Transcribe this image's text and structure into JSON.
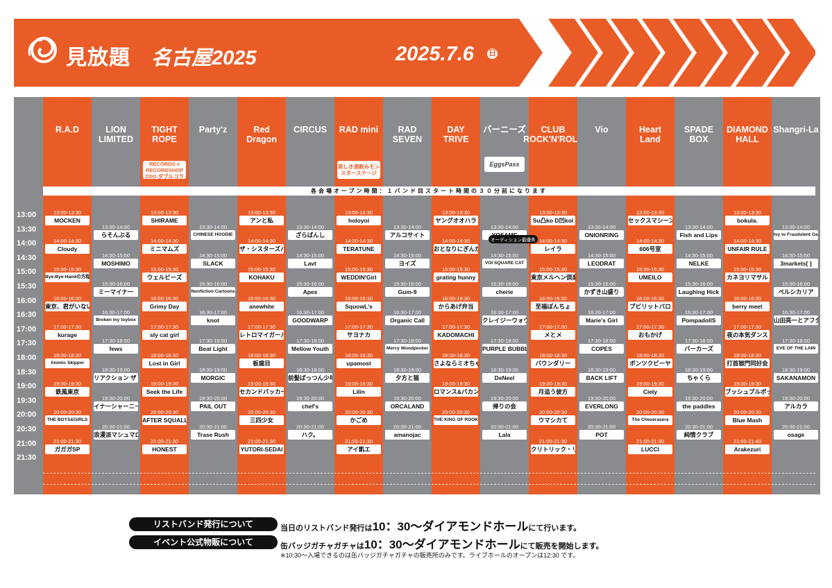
{
  "header": {
    "title": "見放題",
    "subtitle": "名古屋2025",
    "date": "2025.7.6",
    "day_of_week": "日",
    "brand_color": "#ea5c27",
    "logo_icon": "swirl-logo-icon"
  },
  "notice": "各会場オープン時間：１バンド目スタート時間の３０分前になります",
  "time_labels": [
    "13:00",
    "13:30",
    "14:00",
    "14:30",
    "15:00",
    "15:30",
    "16:00",
    "16:30",
    "17:00",
    "17:30",
    "18:00",
    "18:30",
    "19:00",
    "19:30",
    "20:00",
    "20:30",
    "21:00",
    "21:30"
  ],
  "venues": [
    {
      "name": [
        "R.A.D"
      ],
      "color": "orange",
      "slots": [
        {
          "time": "13:00-13:30",
          "name": "MOCKEN"
        },
        {
          "time": "14:00-14:30",
          "name": "Cloudy"
        },
        {
          "time": "15:00-15:30",
          "name": "Bye-Bye-Handの方程式"
        },
        {
          "time": "16:00-16:30",
          "name": "東京、君がいない街"
        },
        {
          "time": "17:00-17:30",
          "name": "kurage"
        },
        {
          "time": "18:00-18:30",
          "name": "Atomic Skipper"
        },
        {
          "time": "19:00-19:30",
          "name": "鉄風東京"
        },
        {
          "time": "20:00-20:30",
          "name": "THE BOYS&GIRLS"
        },
        {
          "time": "21:00-21:30",
          "name": "ガガガSP"
        }
      ]
    },
    {
      "name": [
        "LION",
        "LIMITED"
      ],
      "color": "gray",
      "slots": [
        {
          "time": "13:30-14:00",
          "name": "らそんぶる"
        },
        {
          "time": "14:30-15:00",
          "name": "MOSHIMO"
        },
        {
          "time": "15:30-16:00",
          "name": "ミーマイナー"
        },
        {
          "time": "16:30-17:00",
          "name": "Broken my toybox"
        },
        {
          "time": "17:30-18:00",
          "name": "fews"
        },
        {
          "time": "18:30-19:00",
          "name": "リアクション ザ ブッタ"
        },
        {
          "time": "19:30-20:00",
          "name": "イナーシャーニー"
        },
        {
          "time": "20:30-21:00",
          "name": "浪漫派マシュマロ"
        }
      ]
    },
    {
      "name": [
        "TIGHT",
        "ROPE"
      ],
      "color": "orange",
      "badge": "LONG PARTY RECORDS x RECORDSHOP ZOO ダブルコラボステージ",
      "slots": [
        {
          "time": "13:00-13:30",
          "name": "SHIRAME"
        },
        {
          "time": "14:00-14:30",
          "name": "ミニマムズ"
        },
        {
          "time": "15:00-15:30",
          "name": "ウェルビーズ"
        },
        {
          "time": "16:00-16:30",
          "name": "Grimy Day"
        },
        {
          "time": "17:00-17:30",
          "name": "sly cat girl"
        },
        {
          "time": "18:00-18:30",
          "name": "Lost in Girl"
        },
        {
          "time": "19:00-19:30",
          "name": "Seek the Life"
        },
        {
          "time": "20:00-20:30",
          "name": "AFTER SQUALL"
        },
        {
          "time": "21:00-21:30",
          "name": "HONEST"
        }
      ]
    },
    {
      "name": [
        "Party'z"
      ],
      "color": "gray",
      "slots": [
        {
          "time": "13:30-14:00",
          "name": "CHINESE HOODIE"
        },
        {
          "time": "14:30-15:00",
          "name": "SLACK"
        },
        {
          "time": "15:30-16:00",
          "name": "Nonfiction Cartoons"
        },
        {
          "time": "16:30-17:00",
          "name": "knot"
        },
        {
          "time": "17:30-18:00",
          "name": "Beat Light"
        },
        {
          "time": "18:30-19:00",
          "name": "MORGIC"
        },
        {
          "time": "19:30-20:00",
          "name": "PAIL OUT"
        },
        {
          "time": "20:30-21:00",
          "name": "Trase Rush"
        }
      ]
    },
    {
      "name": [
        "Red",
        "Dragon"
      ],
      "color": "orange",
      "slots": [
        {
          "time": "13:00-13:30",
          "name": "アンと私"
        },
        {
          "time": "14:00-14:30",
          "name": "ザ・シスターズハイ"
        },
        {
          "time": "15:00-15:30",
          "name": "KOHAKU"
        },
        {
          "time": "16:00-16:30",
          "name": "anewhite"
        },
        {
          "time": "17:00-17:30",
          "name": "レトロマイガール!!"
        },
        {
          "time": "18:00-18:30",
          "name": "板歯目"
        },
        {
          "time": "19:00-19:30",
          "name": "セカンドバッカー"
        },
        {
          "time": "20:00-20:30",
          "name": "三四少女"
        },
        {
          "time": "21:00-21:30",
          "name": "YUTORI-SEDAI"
        }
      ]
    },
    {
      "name": [
        "CIRCUS"
      ],
      "color": "gray",
      "slots": [
        {
          "time": "13:30-14:00",
          "name": "ざらばんし"
        },
        {
          "time": "14:30-15:00",
          "name": "Lavt"
        },
        {
          "time": "15:30-16:00",
          "name": "Apes"
        },
        {
          "time": "16:30-17:00",
          "name": "GOODWARP"
        },
        {
          "time": "17:30-18:00",
          "name": "Mellow Youth"
        },
        {
          "time": "18:30-19:00",
          "name": "前髪ぱっつん少年"
        },
        {
          "time": "19:30-20:00",
          "name": "chef's"
        },
        {
          "time": "20:30-21:00",
          "name": "ハク。"
        }
      ]
    },
    {
      "name": [
        "RAD mini"
      ],
      "color": "orange",
      "badge": "悲しき酒飲みモンスターステージ",
      "slots": [
        {
          "time": "13:00-13:30",
          "name": "holoyoi"
        },
        {
          "time": "14:00-14:30",
          "name": "TERATUNE"
        },
        {
          "time": "15:00-15:30",
          "name": "WEDDIN'Girl"
        },
        {
          "time": "16:00-16:30",
          "name": "SquowL's"
        },
        {
          "time": "17:00-17:30",
          "name": "サヨナカ"
        },
        {
          "time": "18:00-18:30",
          "name": "upamost"
        },
        {
          "time": "19:00-19:30",
          "name": "Lilin"
        },
        {
          "time": "20:00-20:30",
          "name": "かごめ"
        },
        {
          "time": "21:00-21:30",
          "name": "アイ凱エ"
        }
      ]
    },
    {
      "name": [
        "RAD SEVEN"
      ],
      "color": "gray",
      "slots": [
        {
          "time": "13:30-14:00",
          "name": "アルコサイト"
        },
        {
          "time": "14:30-15:00",
          "name": "ヨイズ"
        },
        {
          "time": "15:30-16:00",
          "name": "Gum-9"
        },
        {
          "time": "16:30-17:00",
          "name": "Organic Call"
        },
        {
          "time": "17:30-18:00",
          "name": "Mercy Woodpecker"
        },
        {
          "time": "18:30-19:00",
          "name": "夕方と猫"
        },
        {
          "time": "19:30-20:00",
          "name": "ORCALAND"
        },
        {
          "time": "20:30-21:00",
          "name": "amanojac"
        }
      ]
    },
    {
      "name": [
        "DAY",
        "TRIVE"
      ],
      "color": "orange",
      "slots": [
        {
          "time": "13:00-13:30",
          "name": "ヤングオオハラ"
        },
        {
          "time": "14:00-14:30",
          "name": "おとなりにぎんが計画"
        },
        {
          "time": "15:00-15:30",
          "name": "grating hunny"
        },
        {
          "time": "16:00-16:30",
          "name": "からあげ弁当"
        },
        {
          "time": "17:00-17:30",
          "name": "KADOMACHI"
        },
        {
          "time": "18:00-18:30",
          "name": "さよならミオちゃん"
        },
        {
          "time": "19:00-19:30",
          "name": "ロマンス&バカンス"
        },
        {
          "time": "20:00-20:30",
          "name": "THE KING OF ROOKIE"
        }
      ]
    },
    {
      "name": [
        "バーニーズ"
      ],
      "color": "gray",
      "badge": "EggsPass",
      "slots": [
        {
          "time": "13:30-14:00",
          "name": "YOSAME"
        },
        {
          "time": "14:30-15:00",
          "name": "VOI SQUARE CAT"
        },
        {
          "time": "15:30-16:00",
          "name": "cherie"
        },
        {
          "time": "16:30-17:00",
          "name": "クレイジーウォウウォ!!"
        },
        {
          "time": "17:30-18:00",
          "name": "PURPLE BUBBLE"
        },
        {
          "time": "18:30-19:00",
          "name": "DeNeel"
        },
        {
          "time": "19:30-20:00",
          "name": "帰りの会"
        },
        {
          "time": "20:30-21:00",
          "name": "Lala"
        }
      ]
    },
    {
      "name": [
        "CLUB",
        "ROCK'N'ROLL"
      ],
      "color": "orange",
      "slots": [
        {
          "time": "13:00-13:30",
          "name": "Su凸ko D凹koi"
        },
        {
          "time": "14:00-14:30",
          "name": "レイラ"
        },
        {
          "time": "15:00-15:30",
          "name": "東京メルヘン倶楽部"
        },
        {
          "time": "16:00-16:30",
          "name": "至福ぽんちょ"
        },
        {
          "time": "17:00-17:30",
          "name": "メとメ"
        },
        {
          "time": "18:00-18:30",
          "name": "バウンダリー"
        },
        {
          "time": "19:00-19:30",
          "name": "月追う彼方"
        },
        {
          "time": "20:00-20:30",
          "name": "ウマシカて"
        },
        {
          "time": "21:00-21:30",
          "name": "クリトリック・リス"
        }
      ]
    },
    {
      "name": [
        "Vio"
      ],
      "color": "gray",
      "slots": [
        {
          "time": "13:30-14:00",
          "name": "ONIONRING"
        },
        {
          "time": "14:30-15:00",
          "name": "LEODRAT"
        },
        {
          "time": "15:30-16:00",
          "name": "かずき山盛り"
        },
        {
          "time": "16:30-17:00",
          "name": "Marie's Girl"
        },
        {
          "time": "17:30-18:00",
          "name": "COPES"
        },
        {
          "time": "18:30-19:00",
          "name": "BACK LIFT"
        },
        {
          "time": "19:30-20:00",
          "name": "EVERLONG"
        },
        {
          "time": "20:30-21:00",
          "name": "POT"
        }
      ]
    },
    {
      "name": [
        "Heart",
        "Land"
      ],
      "color": "orange",
      "slots": [
        {
          "time": "13:00-13:30",
          "name": "セックスマシーン!!"
        },
        {
          "time": "14:00-14:30",
          "name": "606号室"
        },
        {
          "time": "15:00-15:30",
          "name": "UMEILO"
        },
        {
          "time": "16:00-16:30",
          "name": "ブビリットバロ"
        },
        {
          "time": "17:00-17:30",
          "name": "おもかげ"
        },
        {
          "time": "18:00-18:30",
          "name": "ボンツクビーヤ"
        },
        {
          "time": "19:00-19:30",
          "name": "Ciely"
        },
        {
          "time": "20:00-20:30",
          "name": "The Cheserasera"
        },
        {
          "time": "21:00-21:30",
          "name": "LUCCI"
        }
      ]
    },
    {
      "name": [
        "SPADE BOX"
      ],
      "color": "gray",
      "slots": [
        {
          "time": "13:30-14:00",
          "name": "Fish and Lips"
        },
        {
          "time": "14:30-15:00",
          "name": "NELKE"
        },
        {
          "time": "15:30-16:00",
          "name": "Laughing Hick"
        },
        {
          "time": "16:30-17:00",
          "name": "PompadollS"
        },
        {
          "time": "17:30-18:00",
          "name": "バーカーズ"
        },
        {
          "time": "18:30-19:00",
          "name": "ちゃくら"
        },
        {
          "time": "19:30-20:00",
          "name": "the paddles"
        },
        {
          "time": "20:30-21:00",
          "name": "純情クラブ"
        }
      ]
    },
    {
      "name": [
        "DIAMOND",
        "HALL"
      ],
      "color": "orange",
      "slots": [
        {
          "time": "13:00-13:30",
          "name": "bokula."
        },
        {
          "time": "14:00-14:30",
          "name": "UNFAIR RULE"
        },
        {
          "time": "15:00-15:30",
          "name": "カネヨリマサル"
        },
        {
          "time": "16:00-16:30",
          "name": "berry meet"
        },
        {
          "time": "17:00-17:30",
          "name": "夜の本気ダンス"
        },
        {
          "time": "18:00-18:30",
          "name": "打首獄門同好会"
        },
        {
          "time": "19:00-19:30",
          "name": "ブッシュプルポット"
        },
        {
          "time": "20:00-20:30",
          "name": "Blue Mash"
        },
        {
          "time": "21:00-21:40",
          "name": "Arakezuri"
        }
      ]
    },
    {
      "name": [
        "Shangri-La"
      ],
      "color": "gray",
      "slots": [
        {
          "time": "13:30-14:00",
          "name": "Ivy to Fraudulent Game"
        },
        {
          "time": "14:30-15:00",
          "name": "3markets[ ]"
        },
        {
          "time": "15:30-16:00",
          "name": "ベルシカリア"
        },
        {
          "time": "16:30-17:00",
          "name": "山田亮一とアフターソウル"
        },
        {
          "time": "17:30-18:00",
          "name": "EVE OF THE LAIN"
        },
        {
          "time": "18:30-19:00",
          "name": "SAKANAMON"
        },
        {
          "time": "19:30-20:00",
          "name": "アルカラ"
        },
        {
          "time": "20:30-21:00",
          "name": "osage"
        }
      ]
    }
  ],
  "audition_tag": "オーディション最優秀",
  "footer": {
    "items": [
      {
        "pill": "リストバンド発行について",
        "pre": "当日のリストバンド発行は",
        "big": "10：30〜ダイアモンドホール",
        "post": "にて行います。"
      },
      {
        "pill": "イベント公式物販について",
        "pre": "缶バッジガチャガチャは",
        "big": "10：30〜ダイアモンドホール",
        "post": "にて販売を開始します。"
      }
    ],
    "note": "※10:30〜入場できるのは缶バッジガチャガチャの販売所のみです。ライブホールのオープンは12:30 です。"
  }
}
